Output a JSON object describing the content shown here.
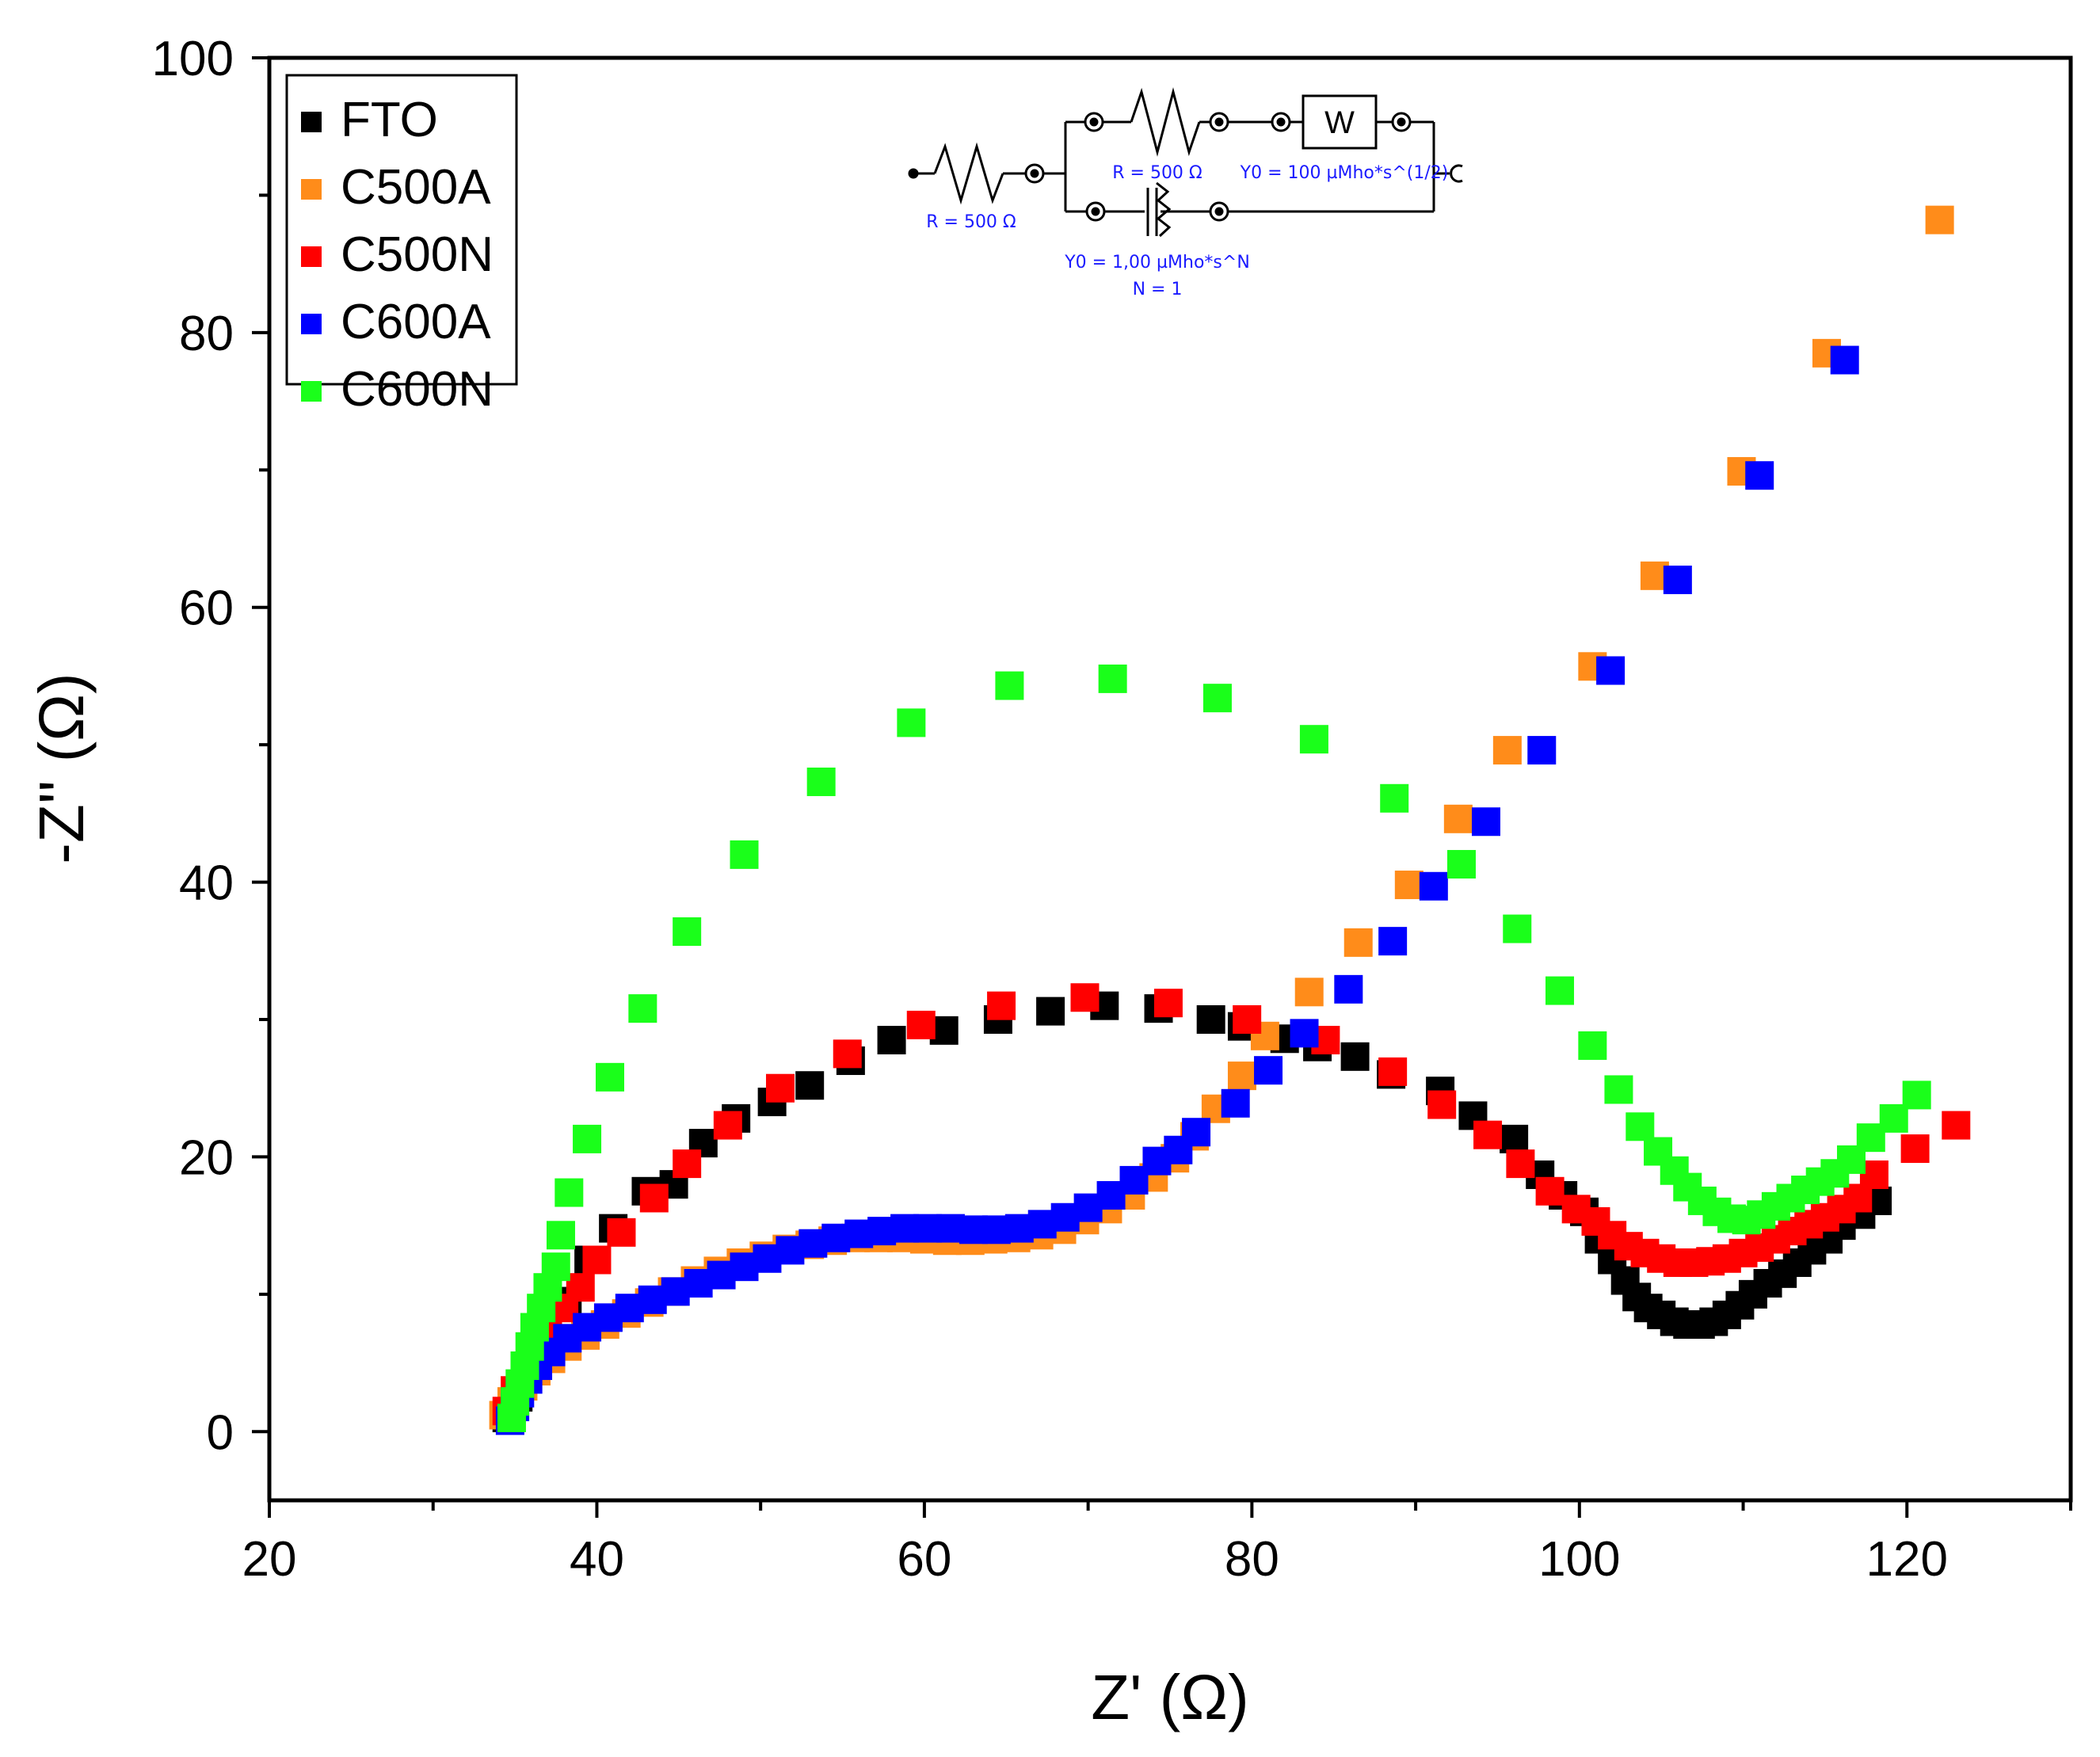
{
  "chart_data": {
    "type": "scatter",
    "title": "",
    "xlabel": "Z' (Ω)",
    "ylabel": "-Z'' (Ω)",
    "xlim": [
      20,
      130
    ],
    "ylim": [
      -5,
      100
    ],
    "xticks": [
      20,
      40,
      60,
      80,
      100,
      120
    ],
    "yticks": [
      0,
      20,
      40,
      60,
      80,
      100
    ],
    "legend_position": "top-left",
    "series": [
      {
        "name": "FTO",
        "color": "#000000",
        "points": [
          [
            34.5,
            1
          ],
          [
            35.2,
            2.5
          ],
          [
            36,
            4.5
          ],
          [
            37,
            7
          ],
          [
            38.2,
            9.5
          ],
          [
            39.5,
            12.5
          ],
          [
            41,
            14.8
          ],
          [
            43,
            17.5
          ],
          [
            44.7,
            18
          ],
          [
            46.5,
            21
          ],
          [
            48.5,
            22.8
          ],
          [
            50.7,
            24
          ],
          [
            53,
            25.2
          ],
          [
            55.5,
            27
          ],
          [
            58,
            28.5
          ],
          [
            61.2,
            29.2
          ],
          [
            64.5,
            30
          ],
          [
            67.7,
            30.6
          ],
          [
            71,
            31
          ],
          [
            74.3,
            30.8
          ],
          [
            77.5,
            30
          ],
          [
            79.4,
            29.5
          ],
          [
            82,
            28.6
          ],
          [
            84,
            28
          ],
          [
            86.3,
            27.3
          ],
          [
            88.5,
            26
          ],
          [
            91.5,
            24.8
          ],
          [
            93.5,
            23
          ],
          [
            96,
            21.3
          ],
          [
            97.6,
            18.7
          ],
          [
            99,
            17.2
          ],
          [
            100.3,
            16
          ],
          [
            101.2,
            14
          ],
          [
            102,
            12.5
          ],
          [
            102.8,
            11
          ],
          [
            103.5,
            9.8
          ],
          [
            104.2,
            9
          ],
          [
            105,
            8.5
          ],
          [
            105.8,
            8
          ],
          [
            106.6,
            7.8
          ],
          [
            107.4,
            7.8
          ],
          [
            108.2,
            8
          ],
          [
            109,
            8.5
          ],
          [
            109.8,
            9.2
          ],
          [
            110.6,
            10
          ],
          [
            111.5,
            10.8
          ],
          [
            112.4,
            11.5
          ],
          [
            113.3,
            12.3
          ],
          [
            114.2,
            13.2
          ],
          [
            115.2,
            14
          ],
          [
            116,
            15
          ],
          [
            117.2,
            15.8
          ],
          [
            118.2,
            16.8
          ]
        ]
      },
      {
        "name": "C500A",
        "color": "#ff8c1a",
        "points": [
          [
            34.3,
            1.2
          ],
          [
            34.8,
            2.2
          ],
          [
            35.5,
            3.3
          ],
          [
            36.3,
            4.4
          ],
          [
            37.2,
            5.3
          ],
          [
            38.2,
            6.2
          ],
          [
            39.3,
            7
          ],
          [
            40.5,
            7.8
          ],
          [
            41.8,
            8.6
          ],
          [
            43.2,
            9.4
          ],
          [
            44.6,
            10.2
          ],
          [
            46,
            11
          ],
          [
            47.4,
            11.7
          ],
          [
            48.8,
            12.3
          ],
          [
            50.2,
            12.8
          ],
          [
            51.6,
            13.3
          ],
          [
            53,
            13.6
          ],
          [
            54.4,
            13.9
          ],
          [
            55.8,
            14.1
          ],
          [
            57.2,
            14.1
          ],
          [
            58.6,
            14.1
          ],
          [
            60,
            14
          ],
          [
            61.4,
            13.9
          ],
          [
            62.8,
            13.9
          ],
          [
            64.2,
            14
          ],
          [
            65.6,
            14.1
          ],
          [
            67,
            14.3
          ],
          [
            68.4,
            14.7
          ],
          [
            69.8,
            15.4
          ],
          [
            71.2,
            16.2
          ],
          [
            72.6,
            17.2
          ],
          [
            74,
            18.5
          ],
          [
            75.3,
            19.9
          ],
          [
            76.5,
            21.5
          ],
          [
            77.8,
            23.5
          ],
          [
            79.4,
            25.9
          ],
          [
            80.8,
            28.8
          ],
          [
            83.5,
            32
          ],
          [
            86.5,
            35.6
          ],
          [
            89.6,
            39.8
          ],
          [
            92.6,
            44.6
          ],
          [
            95.6,
            49.6
          ],
          [
            100.8,
            55.7
          ],
          [
            104.6,
            62.3
          ],
          [
            109.9,
            69.9
          ],
          [
            115.1,
            78.5
          ],
          [
            122,
            88.2
          ]
        ]
      },
      {
        "name": "C500N",
        "color": "#ff0000",
        "points": [
          [
            34.5,
            1.5
          ],
          [
            35,
            3
          ],
          [
            35.6,
            4.5
          ],
          [
            36.3,
            6.2
          ],
          [
            37,
            7.8
          ],
          [
            38,
            9
          ],
          [
            39,
            10.5
          ],
          [
            40,
            12.5
          ],
          [
            41.5,
            14.5
          ],
          [
            43.5,
            17
          ],
          [
            45.5,
            19.5
          ],
          [
            48,
            22.3
          ],
          [
            51.2,
            25
          ],
          [
            55.3,
            27.5
          ],
          [
            59.8,
            29.6
          ],
          [
            64.7,
            31
          ],
          [
            69.8,
            31.6
          ],
          [
            74.9,
            31.2
          ],
          [
            79.7,
            30
          ],
          [
            84.5,
            28.5
          ],
          [
            88.6,
            26.2
          ],
          [
            91.6,
            23.8
          ],
          [
            94.4,
            21.6
          ],
          [
            96.4,
            19.5
          ],
          [
            98.2,
            17.5
          ],
          [
            99.8,
            16.2
          ],
          [
            101,
            15.3
          ],
          [
            102,
            14.3
          ],
          [
            103,
            13.5
          ],
          [
            104,
            13
          ],
          [
            105,
            12.6
          ],
          [
            106,
            12.3
          ],
          [
            107,
            12.3
          ],
          [
            108,
            12.4
          ],
          [
            109,
            12.6
          ],
          [
            110,
            13
          ],
          [
            111,
            13.4
          ],
          [
            112,
            14
          ],
          [
            113,
            14.6
          ],
          [
            114,
            15.1
          ],
          [
            115,
            15.6
          ],
          [
            116,
            16.2
          ],
          [
            117,
            17
          ],
          [
            118,
            18.7
          ],
          [
            120.5,
            20.6
          ],
          [
            123,
            22.3
          ]
        ]
      },
      {
        "name": "C600A",
        "color": "#0000ff",
        "points": [
          [
            34.7,
            0.8
          ],
          [
            35,
            1.8
          ],
          [
            35.3,
            2.8
          ],
          [
            35.8,
            3.8
          ],
          [
            36.4,
            4.8
          ],
          [
            37.2,
            5.8
          ],
          [
            38.2,
            6.8
          ],
          [
            39.4,
            7.6
          ],
          [
            40.7,
            8.3
          ],
          [
            42,
            9
          ],
          [
            43.4,
            9.6
          ],
          [
            44.8,
            10.2
          ],
          [
            46.2,
            10.8
          ],
          [
            47.6,
            11.4
          ],
          [
            49,
            12
          ],
          [
            50.4,
            12.6
          ],
          [
            51.8,
            13.2
          ],
          [
            53.2,
            13.7
          ],
          [
            54.6,
            14.1
          ],
          [
            56,
            14.4
          ],
          [
            57.4,
            14.6
          ],
          [
            58.8,
            14.8
          ],
          [
            60.2,
            14.8
          ],
          [
            61.6,
            14.8
          ],
          [
            63,
            14.7
          ],
          [
            64.4,
            14.7
          ],
          [
            65.8,
            14.8
          ],
          [
            67.2,
            15.1
          ],
          [
            68.6,
            15.6
          ],
          [
            70,
            16.3
          ],
          [
            71.4,
            17.2
          ],
          [
            72.8,
            18.3
          ],
          [
            74.2,
            19.7
          ],
          [
            75.5,
            20.5
          ],
          [
            76.6,
            21.8
          ],
          [
            79,
            23.9
          ],
          [
            81,
            26.3
          ],
          [
            83.2,
            29
          ],
          [
            85.9,
            32.2
          ],
          [
            88.6,
            35.7
          ],
          [
            91.1,
            39.7
          ],
          [
            94.3,
            44.4
          ],
          [
            97.7,
            49.6
          ],
          [
            101.9,
            55.4
          ],
          [
            106,
            62
          ],
          [
            111,
            69.6
          ],
          [
            116.2,
            78
          ]
        ]
      },
      {
        "name": "C600N",
        "color": "#1aff1a",
        "points": [
          [
            34.8,
            1
          ],
          [
            35,
            2.2
          ],
          [
            35.3,
            3.5
          ],
          [
            35.6,
            4.8
          ],
          [
            35.9,
            6.2
          ],
          [
            36.2,
            7.6
          ],
          [
            36.6,
            9
          ],
          [
            37,
            10.5
          ],
          [
            37.5,
            12
          ],
          [
            37.8,
            14.3
          ],
          [
            38.3,
            17.4
          ],
          [
            39.4,
            21.3
          ],
          [
            40.8,
            25.8
          ],
          [
            42.8,
            30.8
          ],
          [
            45.5,
            36.4
          ],
          [
            49,
            42
          ],
          [
            53.7,
            47.3
          ],
          [
            59.2,
            51.6
          ],
          [
            65.2,
            54.3
          ],
          [
            71.5,
            54.8
          ],
          [
            77.9,
            53.4
          ],
          [
            83.8,
            50.4
          ],
          [
            88.7,
            46.1
          ],
          [
            92.8,
            41.3
          ],
          [
            96.2,
            36.6
          ],
          [
            98.8,
            32.1
          ],
          [
            100.8,
            28.1
          ],
          [
            102.4,
            24.9
          ],
          [
            103.7,
            22.2
          ],
          [
            104.8,
            20.4
          ],
          [
            105.8,
            19
          ],
          [
            106.6,
            17.8
          ],
          [
            107.5,
            16.8
          ],
          [
            108.4,
            16
          ],
          [
            109.3,
            15.5
          ],
          [
            110.2,
            15.4
          ],
          [
            111.1,
            15.8
          ],
          [
            112,
            16.4
          ],
          [
            112.9,
            17
          ],
          [
            113.8,
            17.6
          ],
          [
            114.7,
            18.2
          ],
          [
            115.6,
            18.8
          ],
          [
            116.6,
            19.8
          ],
          [
            117.8,
            21.4
          ],
          [
            119.2,
            22.8
          ],
          [
            120.6,
            24.5
          ]
        ]
      }
    ]
  },
  "circuit": {
    "r1_label": "R = 500 Ω",
    "r2_label": "R = 500 Ω",
    "w_label": "W",
    "w_y0_label": "Y0 = 100 µMho*s^(1/2)",
    "cpe_y0_label": "Y0 = 1,00 µMho*s^N",
    "cpe_n_label": "N = 1"
  }
}
